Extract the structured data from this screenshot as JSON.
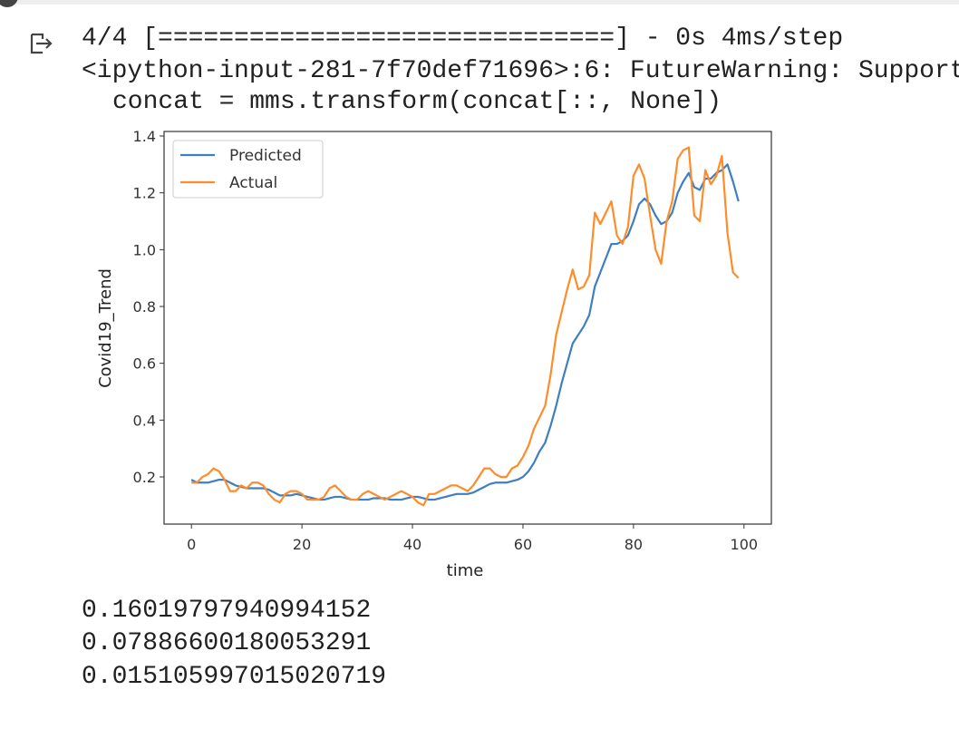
{
  "output_lines": [
    "4/4 [==============================] - 0s 4ms/step",
    "<ipython-input-281-7f70def71696>:6: FutureWarning: Support",
    "concat = mms.transform(concat[::, None])"
  ],
  "chart_data": {
    "type": "line",
    "xlabel": "time",
    "ylabel": "Covid19_Trend",
    "x": [
      0,
      1,
      2,
      3,
      4,
      5,
      6,
      7,
      8,
      9,
      10,
      11,
      12,
      13,
      14,
      15,
      16,
      17,
      18,
      19,
      20,
      21,
      22,
      23,
      24,
      25,
      26,
      27,
      28,
      29,
      30,
      31,
      32,
      33,
      34,
      35,
      36,
      37,
      38,
      39,
      40,
      41,
      42,
      43,
      44,
      45,
      46,
      47,
      48,
      49,
      50,
      51,
      52,
      53,
      54,
      55,
      56,
      57,
      58,
      59,
      60,
      61,
      62,
      63,
      64,
      65,
      66,
      67,
      68,
      69,
      70,
      71,
      72,
      73,
      74,
      75,
      76,
      77,
      78,
      79,
      80,
      81,
      82,
      83,
      84,
      85,
      86,
      87,
      88,
      89,
      90,
      91,
      92,
      93,
      94,
      95,
      96,
      97,
      98,
      99
    ],
    "series": [
      {
        "name": "Predicted",
        "color": "#3f7fbf",
        "values": [
          0.19,
          0.18,
          0.18,
          0.18,
          0.185,
          0.19,
          0.19,
          0.18,
          0.17,
          0.165,
          0.16,
          0.16,
          0.16,
          0.16,
          0.155,
          0.145,
          0.135,
          0.135,
          0.135,
          0.14,
          0.135,
          0.13,
          0.125,
          0.12,
          0.12,
          0.125,
          0.13,
          0.13,
          0.125,
          0.12,
          0.12,
          0.12,
          0.12,
          0.125,
          0.125,
          0.125,
          0.12,
          0.12,
          0.12,
          0.125,
          0.13,
          0.13,
          0.125,
          0.12,
          0.12,
          0.125,
          0.13,
          0.135,
          0.14,
          0.14,
          0.14,
          0.145,
          0.155,
          0.165,
          0.175,
          0.18,
          0.18,
          0.18,
          0.185,
          0.19,
          0.2,
          0.22,
          0.25,
          0.29,
          0.32,
          0.38,
          0.45,
          0.53,
          0.6,
          0.67,
          0.7,
          0.73,
          0.77,
          0.87,
          0.92,
          0.97,
          1.02,
          1.02,
          1.03,
          1.05,
          1.1,
          1.16,
          1.18,
          1.16,
          1.12,
          1.09,
          1.1,
          1.13,
          1.2,
          1.24,
          1.27,
          1.22,
          1.21,
          1.25,
          1.25,
          1.27,
          1.28,
          1.3,
          1.24,
          1.17
        ]
      },
      {
        "name": "Actual",
        "color": "#ff8c2a",
        "values": [
          0.18,
          0.18,
          0.2,
          0.21,
          0.23,
          0.22,
          0.19,
          0.15,
          0.15,
          0.17,
          0.16,
          0.18,
          0.18,
          0.17,
          0.14,
          0.12,
          0.11,
          0.14,
          0.15,
          0.15,
          0.14,
          0.12,
          0.12,
          0.12,
          0.13,
          0.16,
          0.17,
          0.15,
          0.13,
          0.12,
          0.12,
          0.14,
          0.15,
          0.14,
          0.13,
          0.12,
          0.13,
          0.14,
          0.15,
          0.14,
          0.13,
          0.11,
          0.1,
          0.14,
          0.14,
          0.15,
          0.16,
          0.17,
          0.17,
          0.16,
          0.15,
          0.17,
          0.2,
          0.23,
          0.23,
          0.21,
          0.2,
          0.2,
          0.23,
          0.24,
          0.27,
          0.31,
          0.37,
          0.41,
          0.45,
          0.56,
          0.7,
          0.78,
          0.86,
          0.93,
          0.86,
          0.87,
          0.91,
          1.13,
          1.09,
          1.13,
          1.17,
          1.05,
          1.02,
          1.08,
          1.26,
          1.3,
          1.25,
          1.12,
          1.0,
          0.95,
          1.1,
          1.17,
          1.32,
          1.35,
          1.36,
          1.12,
          1.1,
          1.28,
          1.23,
          1.26,
          1.33,
          1.06,
          0.92,
          0.9
        ]
      }
    ],
    "xlim": [
      -4.95,
      104.95
    ],
    "xticks": [
      0,
      20,
      40,
      60,
      80,
      100
    ],
    "ylim": [
      0.034,
      1.416
    ],
    "yticks": [
      0.2,
      0.4,
      0.6,
      0.8,
      {
        "value": 1,
        "label": "1.0"
      },
      1.2,
      1.4
    ],
    "legend": "upper left"
  },
  "results": [
    "0.16019797940994152",
    "0.07886600180053291",
    "0.015105997015020719"
  ]
}
